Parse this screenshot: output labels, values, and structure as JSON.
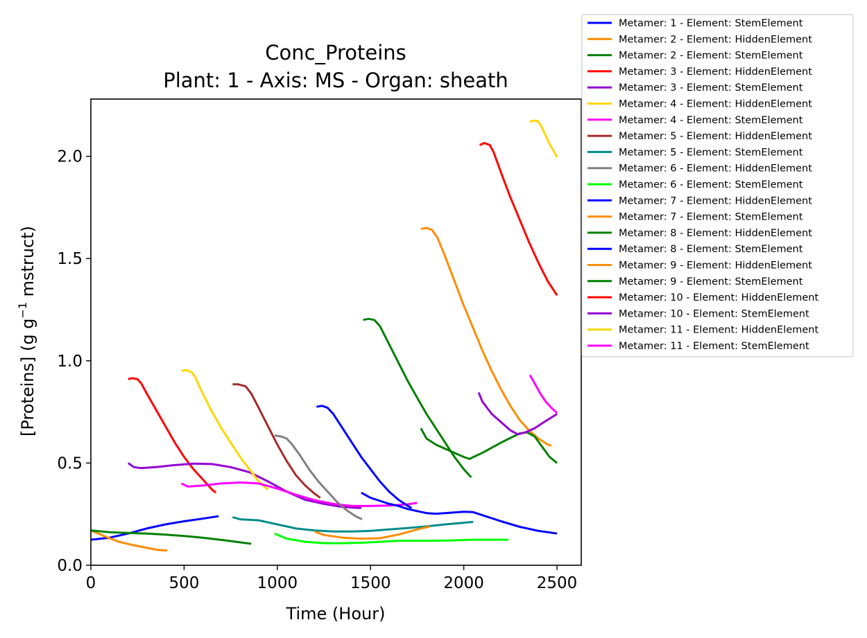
{
  "chart_data": {
    "type": "line",
    "title": "Conc_Proteins",
    "subtitle": "Plant: 1 - Axis: MS - Organ: sheath",
    "xlabel": "Time (Hour)",
    "ylabel_main": "[Proteins] (g g",
    "ylabel_sup": "−1",
    "ylabel_tail": " mstruct)",
    "xlim": [
      0,
      2630
    ],
    "ylim": [
      0,
      2.28
    ],
    "xticks": [
      0,
      500,
      1000,
      1500,
      2000,
      2500
    ],
    "xtick_labels": [
      "0",
      "500",
      "1000",
      "1500",
      "2000",
      "2500"
    ],
    "yticks": [
      0.0,
      0.5,
      1.0,
      1.5,
      2.0
    ],
    "ytick_labels": [
      "0.0",
      "0.5",
      "1.0",
      "1.5",
      "2.0"
    ],
    "grid": false,
    "legend_position": "outside top-right",
    "series": [
      {
        "name": "Metamer: 1 - Element: StemElement",
        "color": "#0000ff",
        "x": [
          0,
          100,
          200,
          300,
          400,
          500,
          600,
          685
        ],
        "y": [
          0.125,
          0.135,
          0.155,
          0.18,
          0.2,
          0.215,
          0.228,
          0.24
        ]
      },
      {
        "name": "Metamer: 2 - Element: HiddenElement",
        "color": "#ff8c00",
        "x": [
          0,
          80,
          150,
          220,
          300,
          360,
          410
        ],
        "y": [
          0.17,
          0.14,
          0.115,
          0.1,
          0.085,
          0.075,
          0.072
        ]
      },
      {
        "name": "Metamer: 2 - Element: StemElement",
        "color": "#008000",
        "x": [
          0,
          100,
          200,
          300,
          400,
          500,
          600,
          700,
          800,
          860
        ],
        "y": [
          0.17,
          0.162,
          0.158,
          0.155,
          0.15,
          0.143,
          0.135,
          0.124,
          0.112,
          0.105
        ]
      },
      {
        "name": "Metamer: 3 - Element: HiddenElement",
        "color": "#ff0000",
        "x": [
          200,
          220,
          250,
          270,
          300,
          350,
          400,
          450,
          500,
          550,
          600,
          650,
          670
        ],
        "y": [
          0.91,
          0.915,
          0.91,
          0.89,
          0.84,
          0.76,
          0.68,
          0.6,
          0.53,
          0.47,
          0.42,
          0.37,
          0.355
        ]
      },
      {
        "name": "Metamer: 3 - Element: StemElement",
        "color": "#9400d3",
        "x": [
          200,
          230,
          270,
          350,
          450,
          550,
          650,
          750,
          850,
          950,
          1050,
          1150,
          1250,
          1350,
          1450
        ],
        "y": [
          0.5,
          0.48,
          0.475,
          0.48,
          0.49,
          0.497,
          0.495,
          0.48,
          0.455,
          0.41,
          0.36,
          0.32,
          0.3,
          0.285,
          0.28
        ]
      },
      {
        "name": "Metamer: 4 - Element: HiddenElement",
        "color": "#ffd700",
        "x": [
          485,
          510,
          540,
          560,
          600,
          650,
          700,
          750,
          800,
          850,
          900,
          950
        ],
        "y": [
          0.95,
          0.955,
          0.945,
          0.92,
          0.84,
          0.75,
          0.67,
          0.6,
          0.53,
          0.47,
          0.41,
          0.37
        ]
      },
      {
        "name": "Metamer: 4 - Element: StemElement",
        "color": "#ff00ff",
        "x": [
          485,
          520,
          600,
          700,
          800,
          900,
          1000,
          1100,
          1200,
          1300,
          1400,
          1500,
          1600,
          1700,
          1750
        ],
        "y": [
          0.4,
          0.385,
          0.39,
          0.4,
          0.405,
          0.4,
          0.375,
          0.345,
          0.318,
          0.3,
          0.29,
          0.29,
          0.292,
          0.298,
          0.305
        ]
      },
      {
        "name": "Metamer: 5 - Element: HiddenElement",
        "color": "#a52a2a",
        "x": [
          760,
          790,
          830,
          860,
          900,
          950,
          1000,
          1050,
          1100,
          1150,
          1200,
          1230
        ],
        "y": [
          0.885,
          0.885,
          0.875,
          0.84,
          0.77,
          0.68,
          0.59,
          0.51,
          0.44,
          0.39,
          0.35,
          0.33
        ]
      },
      {
        "name": "Metamer: 5 - Element: StemElement",
        "color": "#008b8b",
        "x": [
          760,
          800,
          900,
          1000,
          1100,
          1200,
          1300,
          1400,
          1500,
          1600,
          1700,
          1800,
          1900,
          2000,
          2050
        ],
        "y": [
          0.235,
          0.225,
          0.22,
          0.2,
          0.18,
          0.17,
          0.165,
          0.165,
          0.168,
          0.175,
          0.182,
          0.19,
          0.2,
          0.208,
          0.212
        ]
      },
      {
        "name": "Metamer: 6 - Element: HiddenElement",
        "color": "#808080",
        "x": [
          985,
          1020,
          1050,
          1080,
          1120,
          1170,
          1220,
          1270,
          1320,
          1370,
          1420,
          1455
        ],
        "y": [
          0.635,
          0.63,
          0.62,
          0.59,
          0.54,
          0.47,
          0.41,
          0.36,
          0.31,
          0.27,
          0.24,
          0.225
        ]
      },
      {
        "name": "Metamer: 6 - Element: StemElement",
        "color": "#00ff00",
        "x": [
          985,
          1050,
          1150,
          1250,
          1350,
          1450,
          1550,
          1650,
          1750,
          1850,
          1950,
          2050,
          2150,
          2240
        ],
        "y": [
          0.155,
          0.13,
          0.115,
          0.108,
          0.108,
          0.11,
          0.115,
          0.12,
          0.12,
          0.12,
          0.122,
          0.125,
          0.125,
          0.125
        ]
      },
      {
        "name": "Metamer: 7 - Element: HiddenElement",
        "color": "#0000ff",
        "x": [
          1210,
          1240,
          1270,
          1300,
          1350,
          1400,
          1450,
          1500,
          1550,
          1600,
          1650,
          1700,
          1720
        ],
        "y": [
          0.775,
          0.78,
          0.77,
          0.74,
          0.67,
          0.6,
          0.53,
          0.47,
          0.41,
          0.36,
          0.32,
          0.29,
          0.28
        ]
      },
      {
        "name": "Metamer: 7 - Element: StemElement",
        "color": "#ff8c00",
        "x": [
          1200,
          1250,
          1350,
          1450,
          1550,
          1650,
          1750,
          1820
        ],
        "y": [
          0.165,
          0.148,
          0.135,
          0.13,
          0.132,
          0.15,
          0.175,
          0.19
        ]
      },
      {
        "name": "Metamer: 8 - Element: HiddenElement",
        "color": "#008000",
        "x": [
          1460,
          1490,
          1520,
          1550,
          1600,
          1650,
          1700,
          1750,
          1800,
          1850,
          1900,
          1950,
          2000,
          2040
        ],
        "y": [
          1.2,
          1.205,
          1.2,
          1.17,
          1.08,
          0.99,
          0.9,
          0.82,
          0.74,
          0.67,
          0.6,
          0.53,
          0.47,
          0.43
        ]
      },
      {
        "name": "Metamer: 8 - Element: StemElement",
        "color": "#0000ff",
        "x": [
          1450,
          1500,
          1550,
          1600,
          1650,
          1700,
          1750,
          1800,
          1850,
          1900,
          1950,
          2000,
          2050,
          2100,
          2200,
          2300,
          2400,
          2500
        ],
        "y": [
          0.355,
          0.33,
          0.315,
          0.3,
          0.29,
          0.275,
          0.265,
          0.255,
          0.252,
          0.255,
          0.258,
          0.262,
          0.26,
          0.245,
          0.215,
          0.188,
          0.168,
          0.155
        ]
      },
      {
        "name": "Metamer: 9 - Element: HiddenElement",
        "color": "#ff8c00",
        "x": [
          1770,
          1800,
          1830,
          1860,
          1900,
          1950,
          2000,
          2050,
          2100,
          2150,
          2200,
          2250,
          2300,
          2350,
          2400,
          2450,
          2470
        ],
        "y": [
          1.645,
          1.65,
          1.64,
          1.6,
          1.51,
          1.39,
          1.27,
          1.16,
          1.05,
          0.95,
          0.86,
          0.78,
          0.71,
          0.66,
          0.62,
          0.59,
          0.585
        ]
      },
      {
        "name": "Metamer: 9 - Element: StemElement",
        "color": "#008000",
        "x": [
          1770,
          1800,
          1850,
          1900,
          1950,
          2000,
          2030,
          2100,
          2200,
          2300,
          2340,
          2380,
          2420,
          2460,
          2500
        ],
        "y": [
          0.67,
          0.62,
          0.59,
          0.57,
          0.55,
          0.53,
          0.52,
          0.55,
          0.6,
          0.645,
          0.65,
          0.63,
          0.58,
          0.53,
          0.5
        ]
      },
      {
        "name": "Metamer: 10 - Element: HiddenElement",
        "color": "#ff0000",
        "x": [
          2085,
          2110,
          2140,
          2160,
          2200,
          2250,
          2300,
          2350,
          2400,
          2450,
          2500
        ],
        "y": [
          2.055,
          2.065,
          2.055,
          2.02,
          1.92,
          1.8,
          1.69,
          1.58,
          1.48,
          1.39,
          1.32
        ]
      },
      {
        "name": "Metamer: 10 - Element: StemElement",
        "color": "#9400d3",
        "x": [
          2080,
          2100,
          2150,
          2200,
          2250,
          2290,
          2330,
          2380,
          2430,
          2500
        ],
        "y": [
          0.845,
          0.8,
          0.74,
          0.7,
          0.66,
          0.64,
          0.65,
          0.67,
          0.7,
          0.74
        ]
      },
      {
        "name": "Metamer: 11 - Element: HiddenElement",
        "color": "#ffd700",
        "x": [
          2355,
          2380,
          2400,
          2420,
          2440,
          2460,
          2480,
          2500
        ],
        "y": [
          2.17,
          2.175,
          2.17,
          2.14,
          2.1,
          2.06,
          2.03,
          1.995
        ]
      },
      {
        "name": "Metamer: 11 - Element: StemElement",
        "color": "#ff00ff",
        "x": [
          2355,
          2380,
          2410,
          2440,
          2470,
          2500
        ],
        "y": [
          0.93,
          0.89,
          0.84,
          0.8,
          0.77,
          0.745
        ]
      }
    ]
  }
}
